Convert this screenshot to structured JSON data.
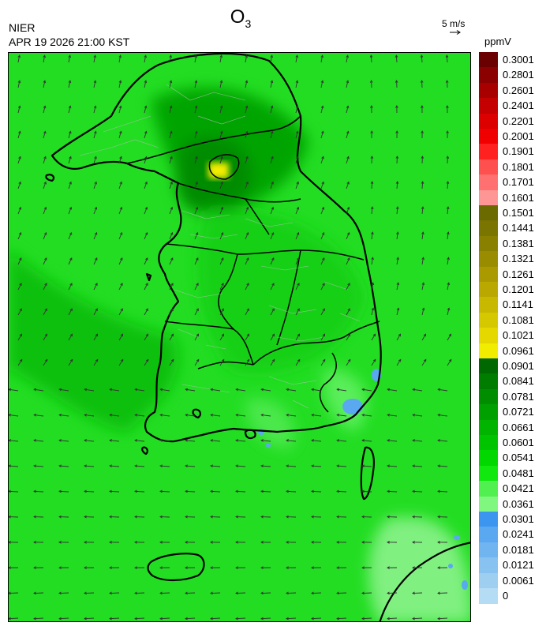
{
  "header": {
    "title_main": "O",
    "title_sub": "3",
    "agency": "NIER",
    "datetime": "APR 19 2026 21:00 KST",
    "wind_reference": "5 m/s",
    "units": "ppmV"
  },
  "colorbar": {
    "labels": [
      "0.3001",
      "0.2801",
      "0.2601",
      "0.2401",
      "0.2201",
      "0.2001",
      "0.1901",
      "0.1801",
      "0.1701",
      "0.1601",
      "0.1501",
      "0.1441",
      "0.1381",
      "0.1321",
      "0.1261",
      "0.1201",
      "0.1141",
      "0.1081",
      "0.1021",
      "0.0961",
      "0.0901",
      "0.0841",
      "0.0781",
      "0.0721",
      "0.0661",
      "0.0601",
      "0.0541",
      "0.0481",
      "0.0421",
      "0.0361",
      "0.0301",
      "0.0241",
      "0.0181",
      "0.0121",
      "0.0061",
      "0"
    ],
    "colors": [
      "#6b0000",
      "#8b0000",
      "#a80000",
      "#c40000",
      "#dc0000",
      "#f00000",
      "#ff2020",
      "#ff5050",
      "#ff7070",
      "#ff9696",
      "#6a6a00",
      "#7a7400",
      "#8a8000",
      "#9a8c00",
      "#aa9a00",
      "#baa800",
      "#c8b800",
      "#d6c800",
      "#e4d800",
      "#f2ec00",
      "#006800",
      "#007c00",
      "#008e00",
      "#00a000",
      "#00b400",
      "#00c400",
      "#00d800",
      "#10e810",
      "#50f050",
      "#80f880",
      "#3c96f0",
      "#5aa8f0",
      "#70b4f0",
      "#88c2f0",
      "#9ecef0",
      "#b4dcf4"
    ]
  },
  "map": {
    "field_colors": {
      "sea_background": "#22dd22",
      "high_ozone_region": "#009400",
      "moderate_region": "#10c810",
      "low_region": "#60f060",
      "very_low": "#5aa8f0",
      "hotspot": "#f2ec00"
    },
    "icon": "wind-vector-arrows"
  }
}
